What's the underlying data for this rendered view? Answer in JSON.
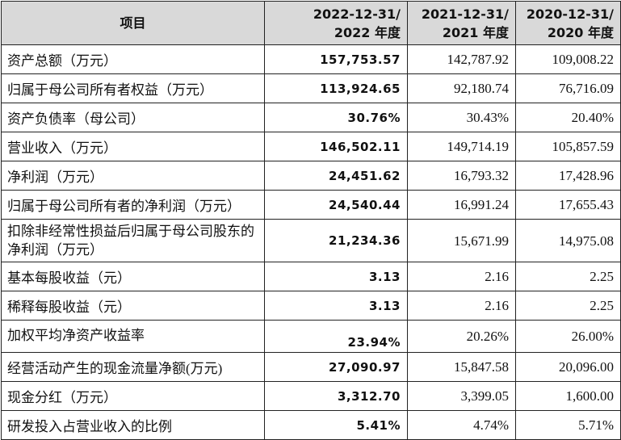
{
  "header": {
    "item": "项目",
    "col1": [
      "2022-12-31/",
      "2022 年度"
    ],
    "col2": [
      "2021-12-31/",
      "2021 年度"
    ],
    "col3": [
      "2020-12-31/",
      "2020 年度"
    ]
  },
  "rows": [
    {
      "label": "资产总额（万元）",
      "v2022": "157,753.57",
      "v2021": "142,787.92",
      "v2020": "109,008.22"
    },
    {
      "label": "归属于母公司所有者权益（万元）",
      "v2022": "113,924.65",
      "v2021": "92,180.74",
      "v2020": "76,716.09"
    },
    {
      "label": "资产负债率（母公司）",
      "v2022": "30.76%",
      "v2021": "30.43%",
      "v2020": "20.40%"
    },
    {
      "label": "营业收入（万元）",
      "v2022": "146,502.11",
      "v2021": "149,714.19",
      "v2020": "105,857.59"
    },
    {
      "label": "净利润（万元）",
      "v2022": "24,451.62",
      "v2021": "16,793.32",
      "v2020": "17,428.96"
    },
    {
      "label": "归属于母公司所有者的净利润（万元）",
      "v2022": "24,540.44",
      "v2021": "16,991.24",
      "v2020": "17,655.43"
    },
    {
      "label": "扣除非经常性损益后归属于母公司股东的净利润（万元）",
      "v2022": "21,234.36",
      "v2021": "15,671.99",
      "v2020": "14,975.08"
    },
    {
      "label": "基本每股收益（元）",
      "v2022": "3.13",
      "v2021": "2.16",
      "v2020": "2.25"
    },
    {
      "label": "稀释每股收益（元）",
      "v2022": "3.13",
      "v2021": "2.16",
      "v2020": "2.25"
    },
    {
      "label": "加权平均净资产收益率",
      "v2022": "23.94%",
      "v2021": "20.26%",
      "v2020": "26.00%"
    },
    {
      "label": "经营活动产生的现金流量净额(万元)",
      "v2022": "27,090.97",
      "v2021": "15,847.58",
      "v2020": "20,096.00"
    },
    {
      "label": "现金分红（万元）",
      "v2022": "3,312.70",
      "v2021": "3,399.05",
      "v2020": "1,600.00"
    },
    {
      "label": "研发投入占营业收入的比例",
      "v2022": "5.41%",
      "v2021": "4.74%",
      "v2020": "5.71%"
    }
  ]
}
